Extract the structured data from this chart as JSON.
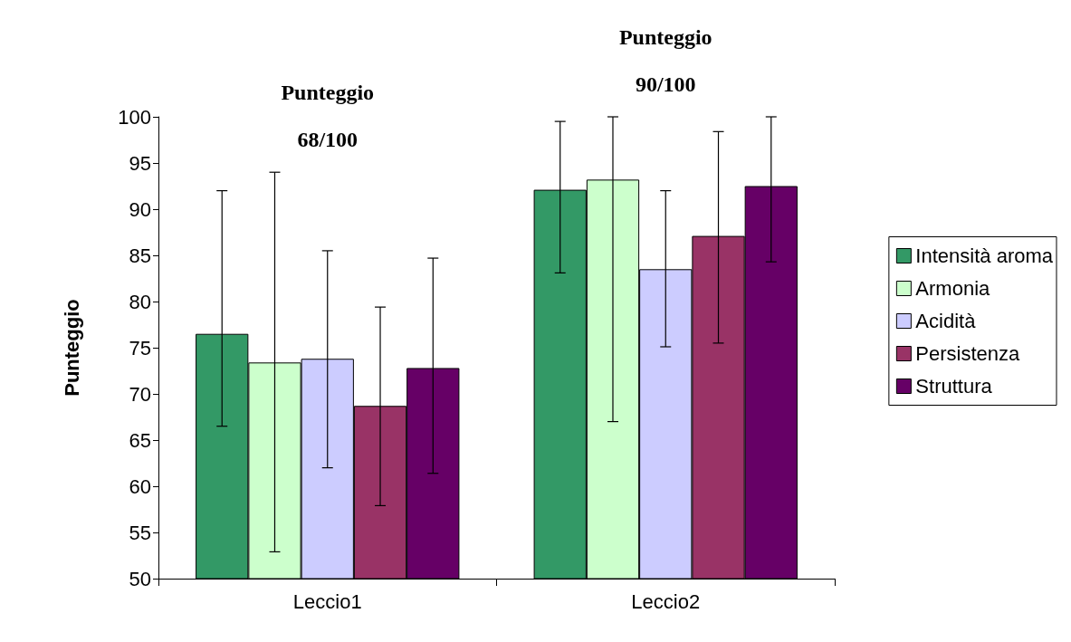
{
  "chart_data": {
    "type": "bar",
    "ylabel": "Punteggio",
    "categories": [
      "Leccio1",
      "Leccio2"
    ],
    "series": [
      {
        "name": "Intensità aroma",
        "color": "#339966",
        "values": [
          76.5,
          92.1
        ],
        "errors": [
          [
            66.5,
            92.0
          ],
          [
            83.1,
            99.5
          ]
        ]
      },
      {
        "name": "Armonia",
        "color": "#ccffcc",
        "values": [
          73.4,
          93.2
        ],
        "errors": [
          [
            52.9,
            94.0
          ],
          [
            67.0,
            100
          ]
        ]
      },
      {
        "name": "Acidità",
        "color": "#ccccff",
        "values": [
          73.8,
          83.5
        ],
        "errors": [
          [
            62.0,
            85.5
          ],
          [
            75.1,
            92.0
          ]
        ]
      },
      {
        "name": "Persistenza",
        "color": "#993366",
        "values": [
          68.7,
          87.1
        ],
        "errors": [
          [
            57.9,
            79.4
          ],
          [
            75.5,
            98.4
          ]
        ]
      },
      {
        "name": "Struttura",
        "color": "#660066",
        "values": [
          72.8,
          92.5
        ],
        "errors": [
          [
            61.4,
            84.7
          ],
          [
            84.3,
            100
          ]
        ]
      }
    ],
    "annotations": [
      "Punteggio\n68/100",
      "Punteggio\n90/100"
    ],
    "ylim": [
      50,
      100
    ],
    "yticks": [
      50,
      55,
      60,
      65,
      70,
      75,
      80,
      85,
      90,
      95,
      100
    ],
    "grid": false,
    "legend": "right"
  }
}
